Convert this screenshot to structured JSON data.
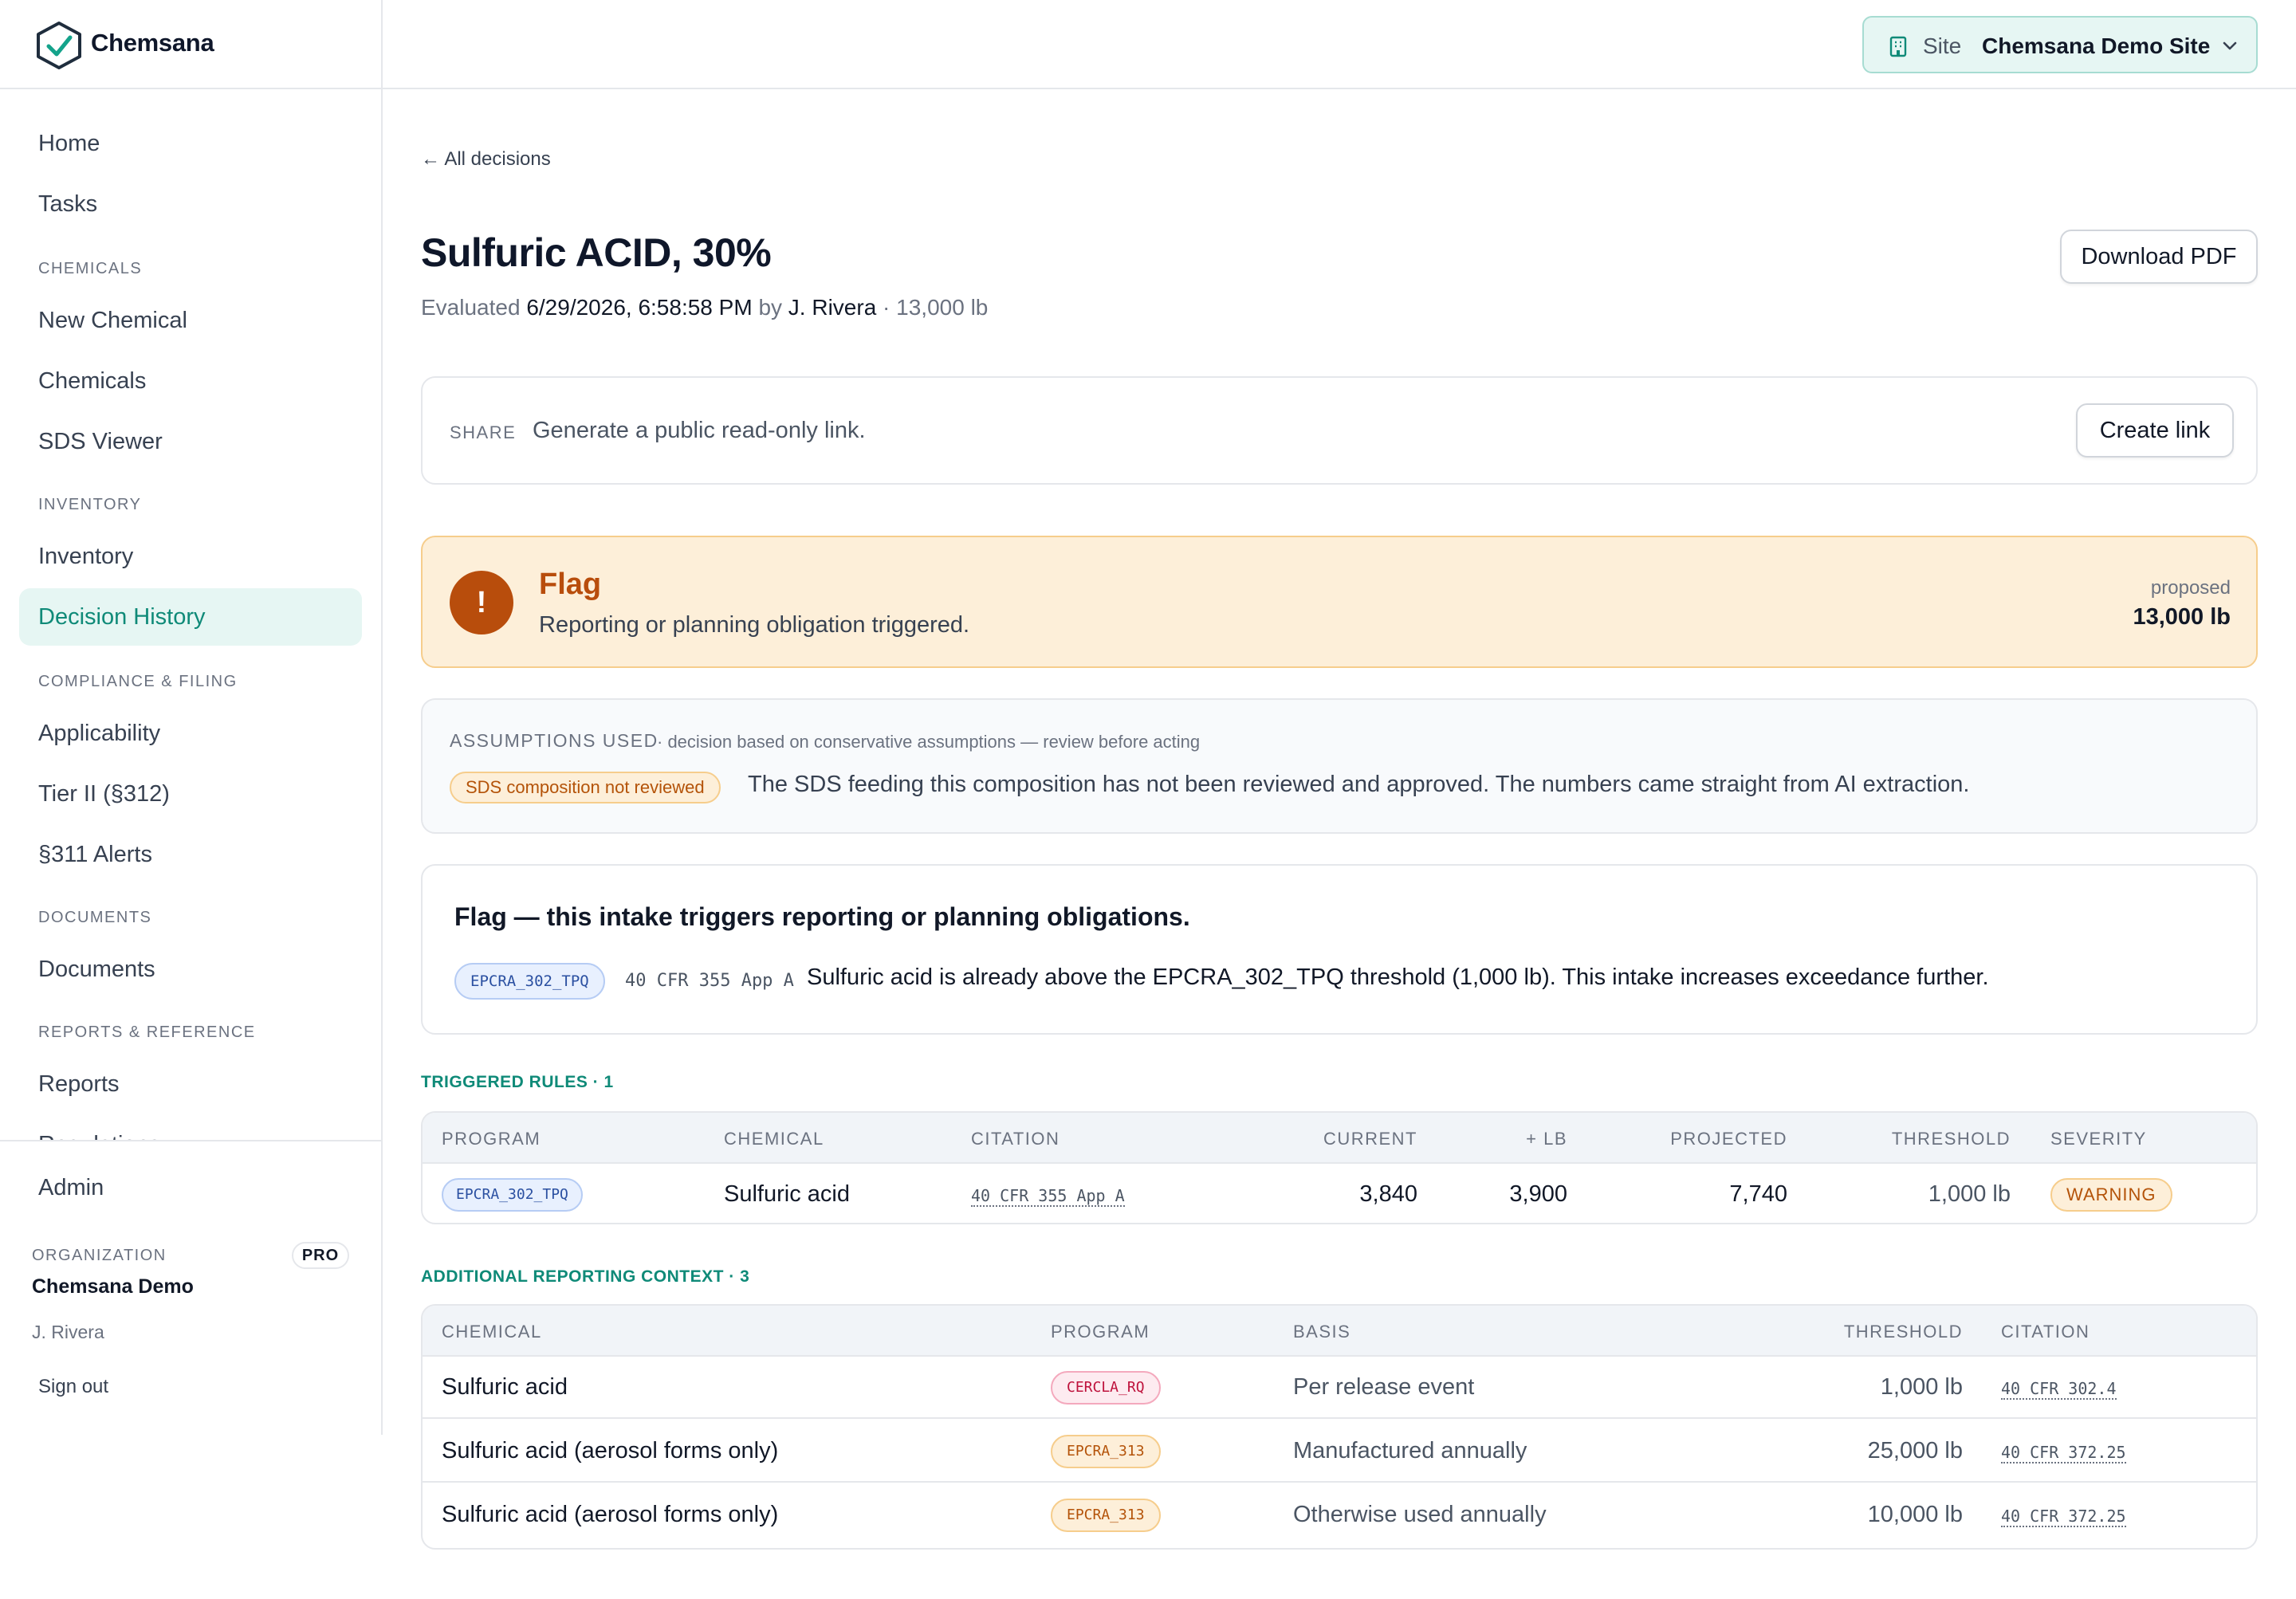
{
  "brand": {
    "name": "Chemsana"
  },
  "site_switcher": {
    "label": "Site",
    "value": "Chemsana Demo Site"
  },
  "nav": {
    "home": "Home",
    "tasks": "Tasks",
    "sec_chemicals": "CHEMICALS",
    "new_chemical": "New Chemical",
    "chemicals": "Chemicals",
    "sds_viewer": "SDS Viewer",
    "sec_inventory": "INVENTORY",
    "inventory": "Inventory",
    "decision_history": "Decision History",
    "sec_compliance": "COMPLIANCE & FILING",
    "applicability": "Applicability",
    "tier2": "Tier II (§312)",
    "alerts311": "§311 Alerts",
    "sec_documents": "DOCUMENTS",
    "documents": "Documents",
    "sec_reports": "REPORTS & REFERENCE",
    "reports": "Reports",
    "regulations": "Regulations"
  },
  "sidebar_bottom": {
    "admin": "Admin",
    "org_label": "ORGANIZATION",
    "plan": "PRO",
    "org_name": "Chemsana Demo",
    "user": "J. Rivera",
    "sign_out": "Sign out"
  },
  "header": {
    "back": "← All decisions",
    "title": "Sulfuric ACID, 30%",
    "evaluated_prefix": "Evaluated",
    "evaluated_at": "6/29/2026, 6:58:58 PM",
    "by_word": "by",
    "evaluator": "J. Rivera",
    "separator": "·",
    "quantity": "13,000 lb",
    "download_pdf": "Download PDF"
  },
  "share": {
    "label": "SHARE",
    "text": "Generate a public read-only link.",
    "button": "Create link"
  },
  "flag": {
    "icon_glyph": "!",
    "title": "Flag",
    "subtitle": "Reporting or planning obligation triggered.",
    "proposed_label": "proposed",
    "proposed_value": "13,000 lb"
  },
  "assumptions": {
    "heading": "ASSUMPTIONS USED",
    "subheading": "· decision based on conservative assumptions — review before acting",
    "badge": "SDS composition not reviewed",
    "description": "The SDS feeding this composition has not been reviewed and approved. The numbers came straight from AI extraction."
  },
  "finding": {
    "title": "Flag — this intake triggers reporting or planning obligations.",
    "program": "EPCRA_302_TPQ",
    "citation": "40 CFR 355 App A",
    "detail": "Sulfuric acid is already above the EPCRA_302_TPQ threshold (1,000 lb). This intake increases exceedance further."
  },
  "triggered_rules": {
    "heading": "TRIGGERED RULES · 1",
    "columns": [
      "PROGRAM",
      "CHEMICAL",
      "CITATION",
      "CURRENT",
      "+ LB",
      "PROJECTED",
      "THRESHOLD",
      "SEVERITY"
    ],
    "rows": [
      {
        "program": "EPCRA_302_TPQ",
        "chemical": "Sulfuric acid",
        "citation": "40 CFR 355 App A",
        "current": "3,840",
        "plus_lb": "3,900",
        "projected": "7,740",
        "threshold": "1,000 lb",
        "severity": "WARNING"
      }
    ]
  },
  "context": {
    "heading": "ADDITIONAL REPORTING CONTEXT · 3",
    "columns": [
      "CHEMICAL",
      "PROGRAM",
      "BASIS",
      "THRESHOLD",
      "CITATION"
    ],
    "rows": [
      {
        "chemical": "Sulfuric acid",
        "program": "CERCLA_RQ",
        "basis": "Per release event",
        "threshold": "1,000 lb",
        "citation": "40 CFR 302.4"
      },
      {
        "chemical": "Sulfuric acid (aerosol forms only)",
        "program": "EPCRA_313",
        "basis": "Manufactured annually",
        "threshold": "25,000 lb",
        "citation": "40 CFR 372.25"
      },
      {
        "chemical": "Sulfuric acid (aerosol forms only)",
        "program": "EPCRA_313",
        "basis": "Otherwise used annually",
        "threshold": "10,000 lb",
        "citation": "40 CFR 372.25"
      }
    ]
  },
  "colors": {
    "accent": "#0f8a78",
    "flag": "#b84d0c",
    "warning_bg": "#fdefd9"
  }
}
